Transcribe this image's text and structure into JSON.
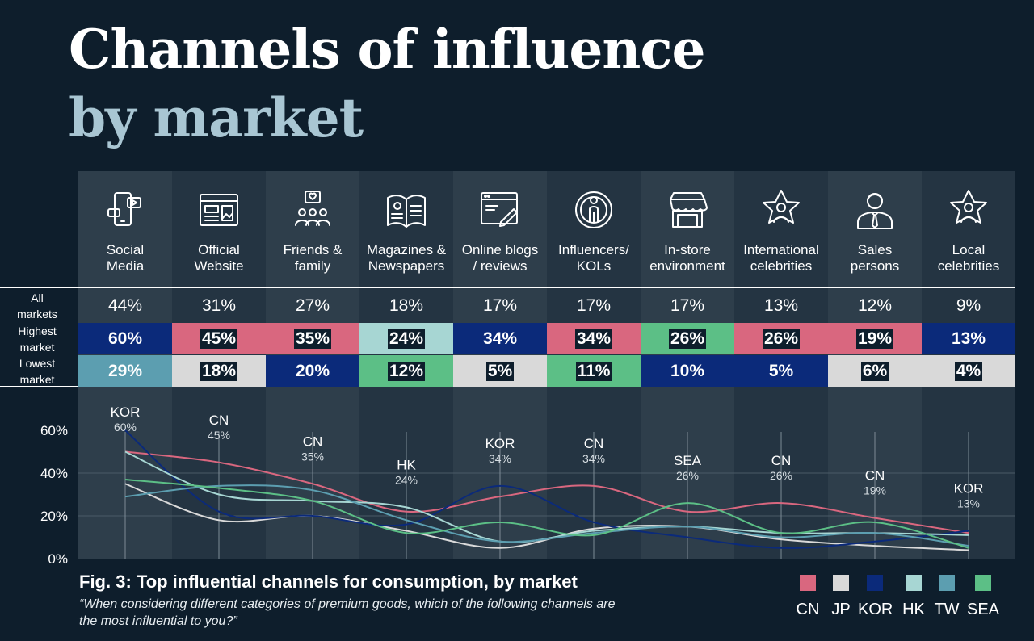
{
  "header": {
    "title_line1": "Channels of influence",
    "title_line2": "by market"
  },
  "row_labels": {
    "all": "All\nmarkets",
    "highest": "Highest\nmarket",
    "lowest": "Lowest\nmarket"
  },
  "channels": [
    {
      "label": "Social\nMedia",
      "icon": "social-media-icon",
      "all": "44%",
      "highest": "60%",
      "highest_market": "KOR",
      "lowest": "29%",
      "lowest_market": "TW"
    },
    {
      "label": "Official\nWebsite",
      "icon": "website-icon",
      "all": "31%",
      "highest": "45%",
      "highest_market": "CN",
      "lowest": "18%",
      "lowest_market": "JP"
    },
    {
      "label": "Friends &\nfamily",
      "icon": "friends-family-icon",
      "all": "27%",
      "highest": "35%",
      "highest_market": "CN",
      "lowest": "20%",
      "lowest_market": "KOR"
    },
    {
      "label": "Magazines &\nNewspapers",
      "icon": "magazine-icon",
      "all": "18%",
      "highest": "24%",
      "highest_market": "HK",
      "lowest": "12%",
      "lowest_market": "SEA"
    },
    {
      "label": "Online blogs\n/ reviews",
      "icon": "blog-icon",
      "all": "17%",
      "highest": "34%",
      "highest_market": "KOR",
      "lowest": "5%",
      "lowest_market": "JP"
    },
    {
      "label": "Influencers/\nKOLs",
      "icon": "influencer-icon",
      "all": "17%",
      "highest": "34%",
      "highest_market": "CN",
      "lowest": "11%",
      "lowest_market": "SEA"
    },
    {
      "label": "In-store\nenvironment",
      "icon": "store-icon",
      "all": "17%",
      "highest": "26%",
      "highest_market": "SEA",
      "lowest": "10%",
      "lowest_market": "KOR"
    },
    {
      "label": "International\ncelebrities",
      "icon": "star-person-icon",
      "all": "13%",
      "highest": "26%",
      "highest_market": "CN",
      "lowest": "5%",
      "lowest_market": "KOR"
    },
    {
      "label": "Sales\npersons",
      "icon": "salesperson-icon",
      "all": "12%",
      "highest": "19%",
      "highest_market": "CN",
      "lowest": "6%",
      "lowest_market": "JP"
    },
    {
      "label": "Local\ncelebrities",
      "icon": "star-person-icon",
      "all": "9%",
      "highest": "13%",
      "highest_market": "KOR",
      "lowest": "4%",
      "lowest_market": "JP"
    }
  ],
  "market_colors": {
    "CN": "#d9677f",
    "JP": "#d9d9d9",
    "KOR": "#0b2a7a",
    "HK": "#a7d6d3",
    "TW": "#5c9eb0",
    "SEA": "#5cbf86"
  },
  "chart_data": {
    "type": "line",
    "categories": [
      "Social Media",
      "Official Website",
      "Friends & family",
      "Magazines & Newspapers",
      "Online blogs / reviews",
      "Influencers/ KOLs",
      "In-store environment",
      "International celebrities",
      "Sales persons",
      "Local celebrities"
    ],
    "ylim": [
      0,
      60
    ],
    "yticks": [
      "0%",
      "20%",
      "40%",
      "60%"
    ],
    "series": [
      {
        "name": "CN",
        "values": [
          50,
          45,
          35,
          22,
          29,
          34,
          22,
          26,
          19,
          12
        ]
      },
      {
        "name": "JP",
        "values": [
          35,
          18,
          20,
          13,
          5,
          14,
          15,
          9,
          6,
          4
        ]
      },
      {
        "name": "KOR",
        "values": [
          60,
          22,
          20,
          16,
          34,
          17,
          10,
          5,
          8,
          13
        ]
      },
      {
        "name": "HK",
        "values": [
          50,
          30,
          27,
          24,
          8,
          13,
          15,
          12,
          12,
          11
        ]
      },
      {
        "name": "TW",
        "values": [
          29,
          34,
          32,
          18,
          8,
          12,
          15,
          10,
          12,
          6
        ]
      },
      {
        "name": "SEA",
        "values": [
          37,
          33,
          27,
          12,
          17,
          11,
          26,
          12,
          17,
          5
        ]
      }
    ],
    "peak_labels": [
      {
        "market": "KOR",
        "value": "60%"
      },
      {
        "market": "CN",
        "value": "45%"
      },
      {
        "market": "CN",
        "value": "35%"
      },
      {
        "market": "HK",
        "value": "24%"
      },
      {
        "market": "KOR",
        "value": "34%"
      },
      {
        "market": "CN",
        "value": "34%"
      },
      {
        "market": "SEA",
        "value": "26%"
      },
      {
        "market": "CN",
        "value": "26%"
      },
      {
        "market": "CN",
        "value": "19%"
      },
      {
        "market": "KOR",
        "value": "13%"
      }
    ]
  },
  "figure": {
    "title": "Fig. 3: Top influential channels for consumption, by market",
    "subtitle": "“When considering different categories of premium goods, which of the following channels are the most influential to you?”"
  },
  "legend": [
    "CN",
    "JP",
    "KOR",
    "HK",
    "TW",
    "SEA"
  ]
}
